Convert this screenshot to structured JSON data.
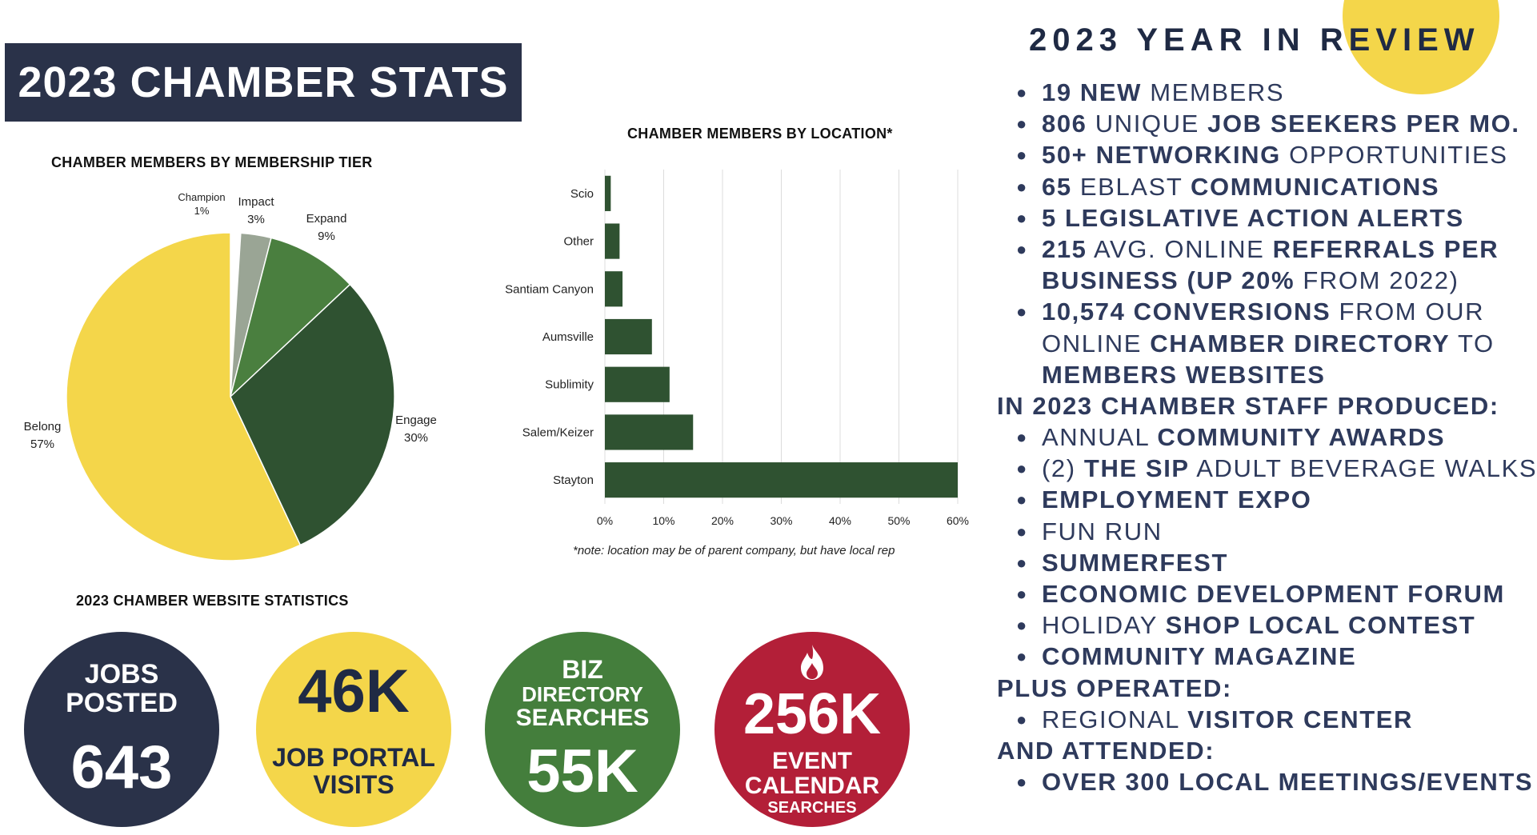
{
  "header": {
    "title": "2023 CHAMBER STATS"
  },
  "colors": {
    "navy": "#2a3249",
    "yellow": "#f4d64a",
    "green": "#447e3c",
    "dark_green": "#2f5231",
    "red": "#b31f38",
    "grey": "#9aa595"
  },
  "chart_data": [
    {
      "type": "pie",
      "title": "CHAMBER MEMBERS BY MEMBERSHIP TIER",
      "slices": [
        {
          "label": "Champion",
          "value": 1,
          "display": "1%",
          "color": "#ffffff"
        },
        {
          "label": "Impact",
          "value": 3,
          "display": "3%",
          "color": "#9aa595"
        },
        {
          "label": "Expand",
          "value": 9,
          "display": "9%",
          "color": "#4a7f3f"
        },
        {
          "label": "Engage",
          "value": 30,
          "display": "30%",
          "color": "#2f5231"
        },
        {
          "label": "Belong",
          "value": 57,
          "display": "57%",
          "color": "#f4d64a"
        }
      ]
    },
    {
      "type": "bar",
      "orientation": "horizontal",
      "title": "CHAMBER MEMBERS BY LOCATION*",
      "categories": [
        "Scio",
        "Other",
        "Santiam Canyon",
        "Aumsville",
        "Sublimity",
        "Salem/Keizer",
        "Stayton"
      ],
      "values": [
        1,
        2.5,
        3,
        8,
        11,
        15,
        60
      ],
      "xlim": [
        0,
        60
      ],
      "ticks": [
        "0%",
        "10%",
        "20%",
        "30%",
        "40%",
        "50%",
        "60%"
      ],
      "tick_values": [
        0,
        10,
        20,
        30,
        40,
        50,
        60
      ],
      "note": "*note: location may be of parent company, but have local rep",
      "bar_color": "#2f5231"
    }
  ],
  "website": {
    "title": "2023 CHAMBER WEBSITE STATISTICS",
    "jobs": {
      "line1": "JOBS",
      "line2": "POSTED",
      "value": "643"
    },
    "portal": {
      "value": "46K",
      "line1": "JOB PORTAL",
      "line2": "VISITS"
    },
    "biz": {
      "line1": "BIZ",
      "line2": "DIRECTORY",
      "line3": "SEARCHES",
      "value": "55K"
    },
    "events": {
      "value": "256K",
      "line1": "EVENT",
      "line2": "CALENDAR",
      "line3": "SEARCHES",
      "icon": "flame-icon"
    }
  },
  "review": {
    "title": "2023 YEAR IN REVIEW",
    "l1": {
      "b1": "19 NEW",
      "n1": " MEMBERS"
    },
    "l2": {
      "b1": "806",
      "n1": " UNIQUE ",
      "b2": "JOB SEEKERS PER MO."
    },
    "l3": {
      "b1": "50+ NETWORKING",
      "n1": " OPPORTUNITIES"
    },
    "l4": {
      "b1": "65",
      "n1": " EBLAST ",
      "b2": "COMMUNICATIONS"
    },
    "l5": {
      "b1": "5 LEGISLATIVE ACTION ALERTS"
    },
    "l6": {
      "b1": "215",
      "n1": " AVG. ONLINE ",
      "b2": "REFERRALS PER"
    },
    "l6b": {
      "b1": "BUSINESS (UP 20%",
      "n1": " FROM 2022)"
    },
    "l7": {
      "b1": "10,574 CONVERSIONS",
      "n1": " FROM OUR"
    },
    "l7b": {
      "n1": "ONLINE ",
      "b1": "CHAMBER DIRECTORY",
      "n2": " TO"
    },
    "l7c": {
      "b1": "MEMBERS WEBSITES"
    },
    "h1": "IN 2023 CHAMBER STAFF PRODUCED:",
    "p1": {
      "n1": "ANNUAL ",
      "b1": "COMMUNITY AWARDS"
    },
    "p2": {
      "n1": "(2) ",
      "b1": "THE SIP",
      "n2": " ADULT BEVERAGE WALKS"
    },
    "p3": {
      "b1": "EMPLOYMENT EXPO"
    },
    "p4": {
      "n1": "FUN RUN"
    },
    "p5": {
      "b1": "SUMMERFEST"
    },
    "p6": {
      "b1": "ECONOMIC DEVELOPMENT FORUM"
    },
    "p7": {
      "n1": "HOLIDAY ",
      "b1": "SHOP LOCAL CONTEST"
    },
    "p8": {
      "b1": "COMMUNITY MAGAZINE"
    },
    "h2": "PLUS OPERATED:",
    "o1": {
      "n1": "REGIONAL ",
      "b1": "VISITOR CENTER"
    },
    "h3": "AND ATTENDED:",
    "a1": {
      "b1": "OVER 300 LOCAL MEETINGS/EVENTS"
    }
  }
}
